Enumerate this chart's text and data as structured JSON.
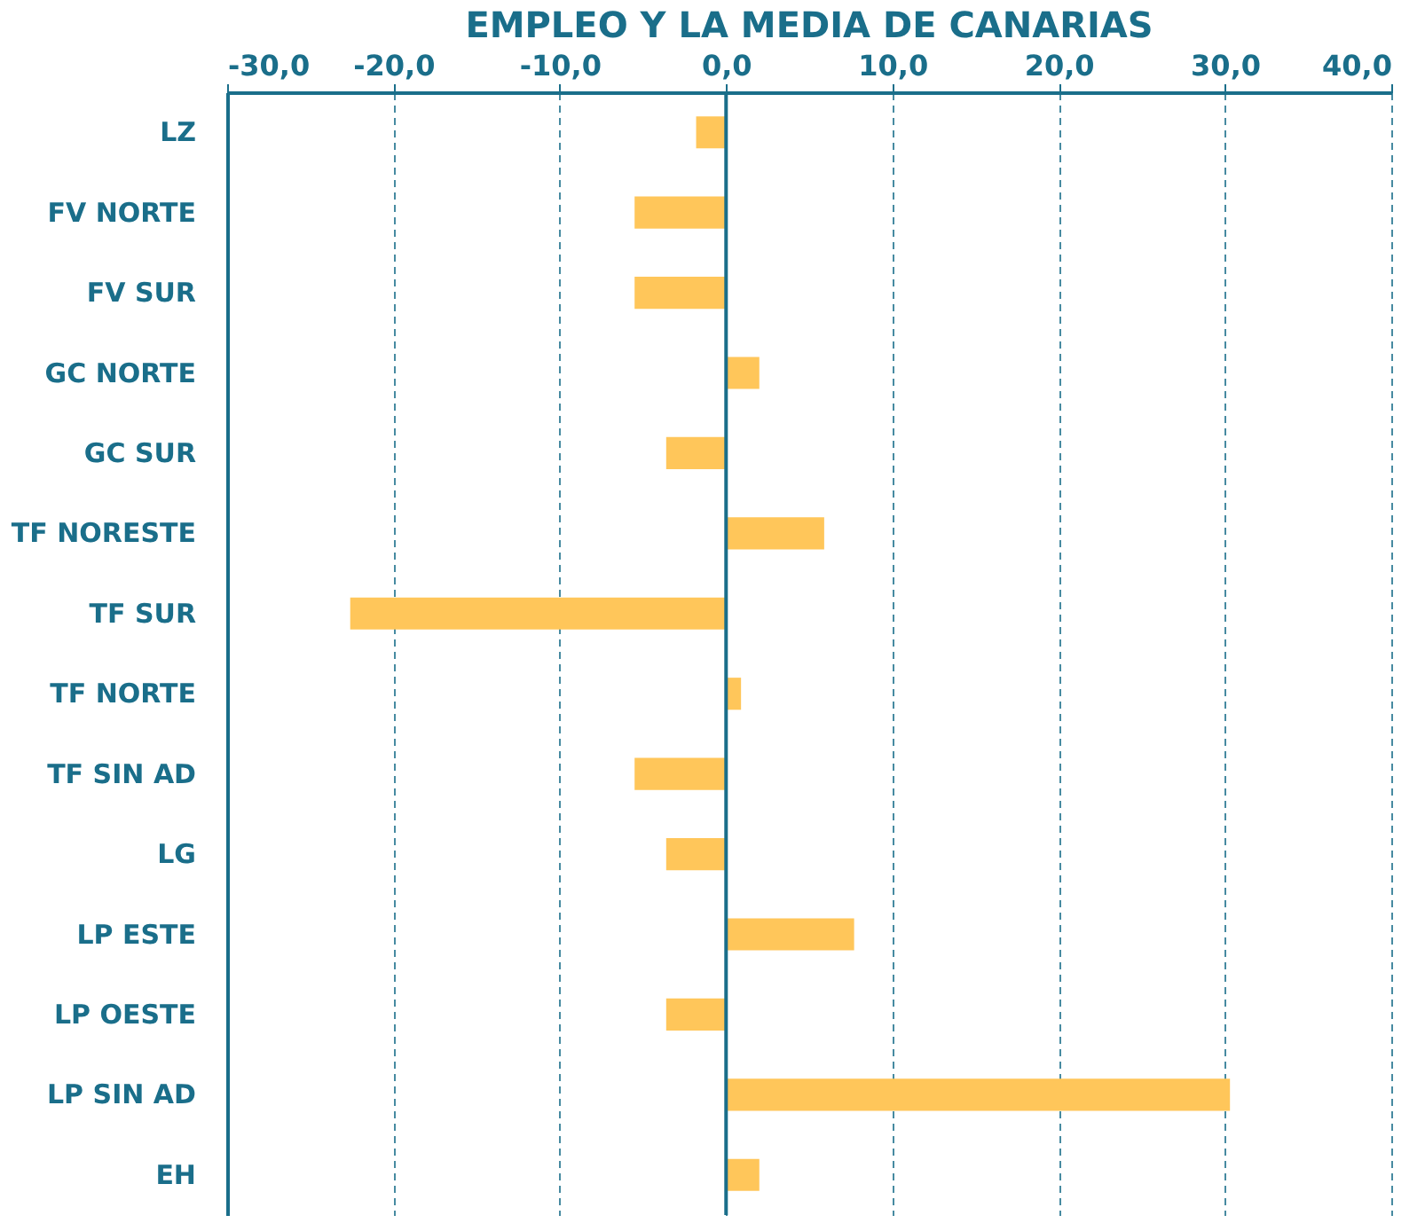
{
  "chart_data": {
    "type": "bar",
    "orientation": "horizontal",
    "title": "EMPLEO Y LA MEDIA DE CANARIAS",
    "categories": [
      "LZ",
      "FV NORTE",
      "FV SUR",
      "GC NORTE",
      "GC SUR",
      "TF NORESTE",
      "TF SUR",
      "TF NORTE",
      "TF SIN AD",
      "LG",
      "LP ESTE",
      "LP OESTE",
      "LP SIN AD",
      "EH"
    ],
    "values": [
      -1.8,
      -5.5,
      -5.5,
      2.0,
      -3.6,
      5.9,
      -22.6,
      0.9,
      -5.5,
      -3.6,
      7.7,
      -3.6,
      30.3,
      2.0
    ],
    "color": "#ffc65a",
    "xlim": [
      -30,
      40
    ],
    "xticks": [
      {
        "value": -30,
        "label": "-30,0"
      },
      {
        "value": -20,
        "label": "-20,0"
      },
      {
        "value": -10,
        "label": "-10,0"
      },
      {
        "value": 0,
        "label": "0,0"
      },
      {
        "value": 10,
        "label": "10,0"
      },
      {
        "value": 20,
        "label": "20,0"
      },
      {
        "value": 30,
        "label": "30,0"
      },
      {
        "value": 40,
        "label": "40,0"
      }
    ],
    "grid": "x",
    "ref_lines": [
      {
        "axis": "x",
        "value": 0,
        "color": "#1a6e8a",
        "line_style": "solid"
      }
    ]
  }
}
